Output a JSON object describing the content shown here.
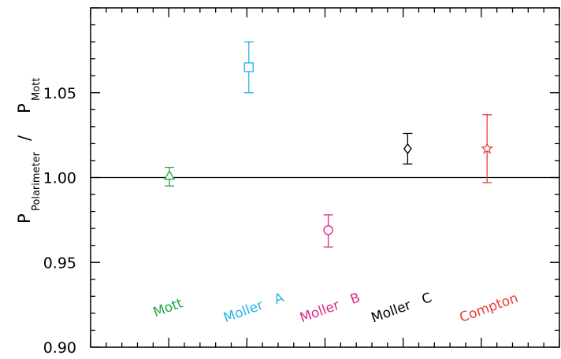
{
  "chart_data": {
    "type": "scatter",
    "title": "",
    "xlabel": "",
    "ylabel": {
      "main_p1": "P",
      "sub1": "Polarimeter",
      "slash": "/",
      "main_p2": "P",
      "sub2": "Mott"
    },
    "ylim": [
      0.9,
      1.1
    ],
    "yticks": [
      0.9,
      0.95,
      1.0,
      1.05
    ],
    "ytick_labels": [
      "0.90",
      "0.95",
      "1.00",
      "1.05"
    ],
    "reference_line": 1.0,
    "grid": false,
    "points": [
      {
        "label": "Mott",
        "y": 1.001,
        "err_low": 0.995,
        "err_high": 1.006,
        "marker": "triangle",
        "color": "#22a844"
      },
      {
        "label": "Moller   A",
        "y": 1.065,
        "err_low": 1.05,
        "err_high": 1.08,
        "marker": "square",
        "color": "#2ab4e8"
      },
      {
        "label": "Moller   B",
        "y": 0.969,
        "err_low": 0.959,
        "err_high": 0.978,
        "marker": "circle",
        "color": "#e0288a"
      },
      {
        "label": "Moller   C",
        "y": 1.017,
        "err_low": 1.008,
        "err_high": 1.026,
        "marker": "diamond",
        "color": "#000000"
      },
      {
        "label": "Compton",
        "y": 1.017,
        "err_low": 0.997,
        "err_high": 1.037,
        "marker": "star",
        "color": "#e83a3a"
      }
    ]
  }
}
